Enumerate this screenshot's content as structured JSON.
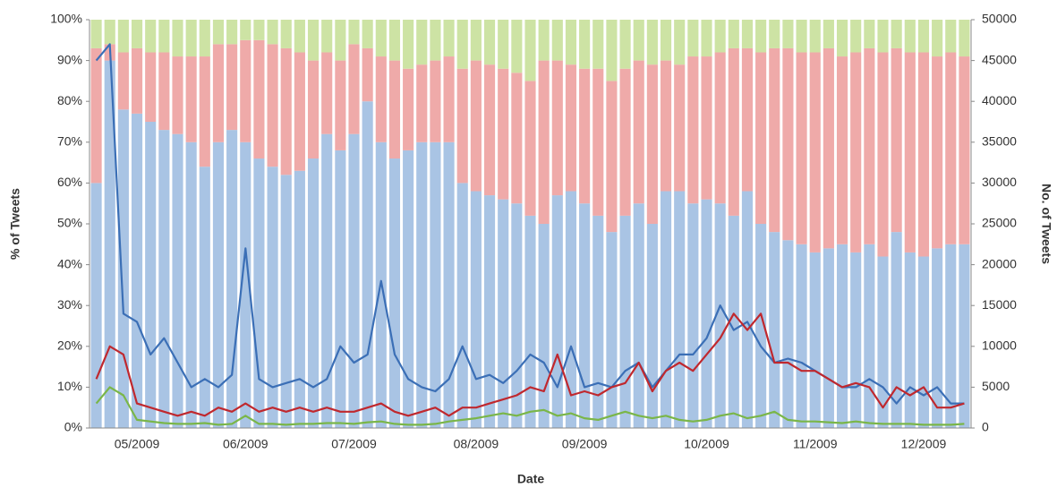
{
  "chart_data": {
    "type": "bar",
    "stacked": true,
    "x_label": "Date",
    "y_label": "% of Tweets",
    "y2_label": "No. of Tweets",
    "categories": [
      null,
      null,
      null,
      "05/2009",
      null,
      null,
      null,
      null,
      null,
      null,
      null,
      "06/2009",
      null,
      null,
      null,
      null,
      null,
      null,
      null,
      "07/2009",
      null,
      null,
      null,
      null,
      null,
      null,
      null,
      null,
      "08/2009",
      null,
      null,
      null,
      null,
      null,
      null,
      null,
      "09/2009",
      null,
      null,
      null,
      null,
      null,
      null,
      null,
      null,
      "10/2009",
      null,
      null,
      null,
      null,
      null,
      null,
      null,
      "11/2009",
      null,
      null,
      null,
      null,
      null,
      null,
      null,
      "12/2009",
      null,
      null,
      null
    ],
    "ylim": [
      0,
      100
    ],
    "yticks": [
      {
        "value": 0,
        "label": "0%"
      },
      {
        "value": 10,
        "label": "10%"
      },
      {
        "value": 20,
        "label": "20%"
      },
      {
        "value": 30,
        "label": "30%"
      },
      {
        "value": 40,
        "label": "40%"
      },
      {
        "value": 50,
        "label": "50%"
      },
      {
        "value": 60,
        "label": "60%"
      },
      {
        "value": 70,
        "label": "70%"
      },
      {
        "value": 80,
        "label": "80%"
      },
      {
        "value": 90,
        "label": "90%"
      },
      {
        "value": 100,
        "label": "100%"
      }
    ],
    "y2lim": [
      0,
      50000
    ],
    "y2ticks": [
      0,
      5000,
      10000,
      15000,
      20000,
      25000,
      30000,
      35000,
      40000,
      45000,
      50000
    ],
    "series": [
      {
        "type": "bar",
        "color": "#a9c4e4",
        "values": [
          60,
          90,
          78,
          77,
          75,
          73,
          72,
          70,
          64,
          70,
          73,
          70,
          66,
          64,
          62,
          63,
          66,
          72,
          68,
          72,
          80,
          70,
          66,
          68,
          70,
          70,
          70,
          60,
          58,
          57,
          56,
          55,
          52,
          50,
          57,
          58,
          55,
          52,
          48,
          52,
          55,
          50,
          58,
          58,
          55,
          56,
          55,
          52,
          58,
          50,
          48,
          46,
          45,
          43,
          44,
          45,
          43,
          45,
          42,
          48,
          43,
          42,
          44,
          45,
          45
        ]
      },
      {
        "type": "bar",
        "color": "#efaaa9",
        "values": [
          33,
          4,
          14,
          16,
          17,
          19,
          19,
          21,
          27,
          24,
          21,
          25,
          29,
          30,
          31,
          29,
          24,
          20,
          22,
          22,
          13,
          21,
          24,
          20,
          19,
          20,
          21,
          28,
          32,
          32,
          32,
          32,
          33,
          40,
          33,
          31,
          33,
          36,
          37,
          36,
          35,
          39,
          32,
          31,
          36,
          35,
          37,
          41,
          35,
          42,
          45,
          47,
          47,
          49,
          49,
          46,
          49,
          48,
          50,
          45,
          49,
          50,
          47,
          47,
          46
        ]
      },
      {
        "type": "bar",
        "color": "#cde3a4",
        "values": [
          7,
          6,
          8,
          7,
          8,
          8,
          9,
          9,
          9,
          6,
          6,
          5,
          5,
          6,
          7,
          8,
          10,
          8,
          10,
          6,
          7,
          9,
          10,
          12,
          11,
          10,
          9,
          12,
          10,
          11,
          12,
          13,
          15,
          10,
          10,
          11,
          12,
          12,
          15,
          12,
          10,
          11,
          10,
          11,
          9,
          9,
          8,
          7,
          7,
          8,
          7,
          7,
          8,
          8,
          7,
          9,
          8,
          7,
          8,
          7,
          8,
          8,
          9,
          8,
          9
        ]
      },
      {
        "type": "line",
        "axis": "y2",
        "color": "#3b6fb6",
        "values": [
          45000,
          47000,
          14000,
          13000,
          9000,
          11000,
          8000,
          5000,
          6000,
          5000,
          6500,
          22000,
          6000,
          5000,
          5500,
          6000,
          5000,
          6000,
          10000,
          8000,
          9000,
          18000,
          9000,
          6000,
          5000,
          4500,
          6000,
          10000,
          6000,
          6500,
          5500,
          7000,
          9000,
          8000,
          5000,
          10000,
          5000,
          5500,
          5000,
          7000,
          8000,
          5000,
          7000,
          9000,
          9000,
          11000,
          15000,
          12000,
          13000,
          10000,
          8000,
          8500,
          8000,
          7000,
          6000,
          5000,
          5000,
          6000,
          5000,
          3000,
          5000,
          4000,
          5000,
          3000,
          3000
        ]
      },
      {
        "type": "line",
        "axis": "y2",
        "color": "#c0282e",
        "values": [
          6000,
          10000,
          9000,
          3000,
          2500,
          2000,
          1500,
          2000,
          1500,
          2500,
          2000,
          3000,
          2000,
          2500,
          2000,
          2500,
          2000,
          2500,
          2000,
          2000,
          2500,
          3000,
          2000,
          1500,
          2000,
          2500,
          1500,
          2500,
          2500,
          3000,
          3500,
          4000,
          5000,
          4500,
          9000,
          4000,
          4500,
          4000,
          5000,
          5500,
          8000,
          4500,
          7000,
          8000,
          7000,
          9000,
          11000,
          14000,
          12000,
          14000,
          8000,
          8000,
          7000,
          7000,
          6000,
          5000,
          5500,
          5000,
          2500,
          5000,
          4000,
          5000,
          2500,
          2500,
          3000
        ]
      },
      {
        "type": "line",
        "axis": "y2",
        "color": "#7ab648",
        "values": [
          3000,
          5000,
          4000,
          1000,
          800,
          600,
          500,
          500,
          600,
          400,
          500,
          1500,
          500,
          500,
          400,
          500,
          500,
          600,
          600,
          500,
          700,
          800,
          500,
          400,
          400,
          500,
          800,
          1000,
          1200,
          1500,
          1800,
          1500,
          2000,
          2200,
          1500,
          1800,
          1200,
          1000,
          1500,
          2000,
          1500,
          1200,
          1500,
          1000,
          800,
          1000,
          1500,
          1800,
          1200,
          1500,
          2000,
          1000,
          800,
          800,
          700,
          600,
          800,
          600,
          500,
          500,
          500,
          400,
          400,
          400,
          500
        ]
      }
    ]
  }
}
